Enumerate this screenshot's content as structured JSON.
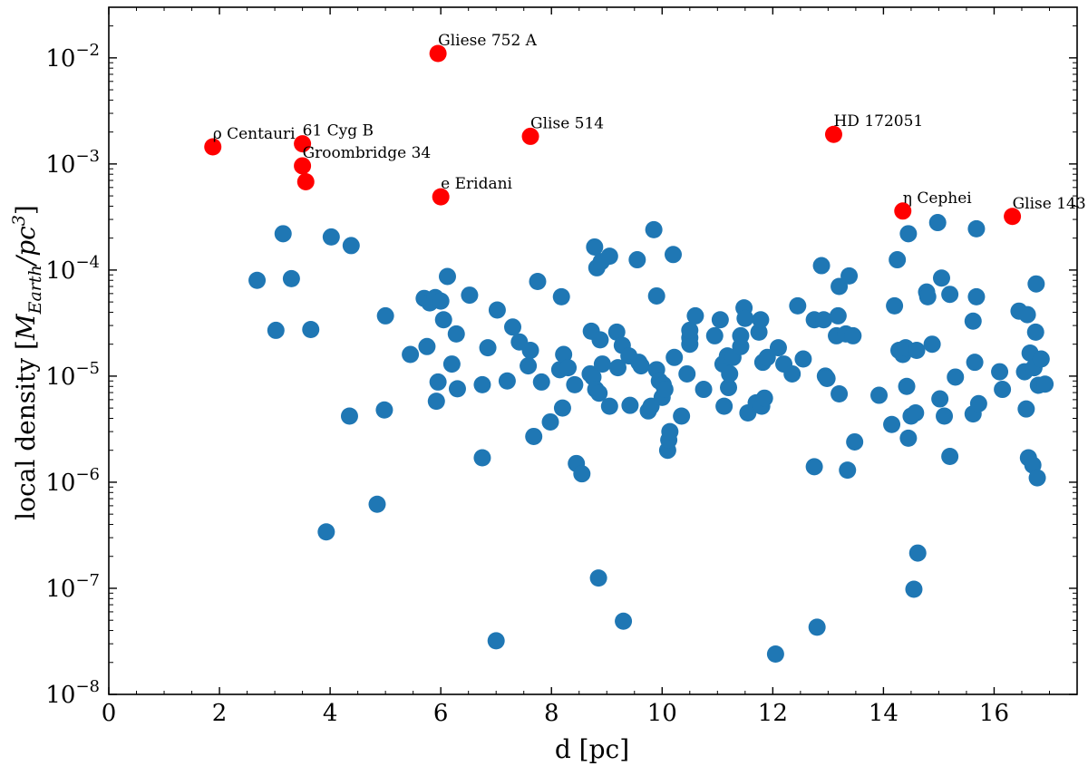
{
  "chart_data": {
    "type": "scatter",
    "title": "",
    "xlabel": "d [pc]",
    "ylabel": "local density [M_Earth/pc^3]",
    "ylabel_parts": {
      "prefix": "local density [",
      "m": "M",
      "sub": "Earth",
      "mid": "/pc",
      "sup": "3",
      "suffix": "]"
    },
    "xlim": [
      0,
      17.5
    ],
    "ylim": [
      1e-08,
      0.03
    ],
    "yscale": "log",
    "xticks": [
      0,
      2,
      4,
      6,
      8,
      10,
      12,
      14,
      16
    ],
    "yticks": [
      {
        "value": 1e-08,
        "base": "10",
        "exp": "−8"
      },
      {
        "value": 1e-07,
        "base": "10",
        "exp": "−7"
      },
      {
        "value": 1e-06,
        "base": "10",
        "exp": "−6"
      },
      {
        "value": 1e-05,
        "base": "10",
        "exp": "−5"
      },
      {
        "value": 0.0001,
        "base": "10",
        "exp": "−4"
      },
      {
        "value": 0.001,
        "base": "10",
        "exp": "−3"
      },
      {
        "value": 0.01,
        "base": "10",
        "exp": "−2"
      }
    ],
    "grid": false,
    "colors": {
      "background_stars": "#1f77b4",
      "highlighted_stars": "#ff0000"
    },
    "series": [
      {
        "points": [
          [
            2.68,
            8e-05
          ],
          [
            3.02,
            2.7e-05
          ],
          [
            3.15,
            0.00022
          ],
          [
            3.3,
            8.3e-05
          ],
          [
            3.65,
            2.75e-05
          ],
          [
            3.93,
            3.4e-07
          ],
          [
            4.02,
            0.000205
          ],
          [
            4.35,
            4.2e-06
          ],
          [
            4.38,
            0.00017
          ],
          [
            4.85,
            6.2e-07
          ],
          [
            4.98,
            4.8e-06
          ],
          [
            5.0,
            3.7e-05
          ],
          [
            5.45,
            1.6e-05
          ],
          [
            5.7,
            5.4e-05
          ],
          [
            5.75,
            1.9e-05
          ],
          [
            5.8,
            4.9e-05
          ],
          [
            5.9,
            5.5e-05
          ],
          [
            5.92,
            5.8e-06
          ],
          [
            5.95,
            8.8e-06
          ],
          [
            6.0,
            5.1e-05
          ],
          [
            6.05,
            3.4e-05
          ],
          [
            6.12,
            8.7e-05
          ],
          [
            6.2,
            1.3e-05
          ],
          [
            6.28,
            2.5e-05
          ],
          [
            6.3,
            7.6e-06
          ],
          [
            6.52,
            5.8e-05
          ],
          [
            6.75,
            1.7e-06
          ],
          [
            6.75,
            8.3e-06
          ],
          [
            6.85,
            1.85e-05
          ],
          [
            7.0,
            3.2e-08
          ],
          [
            7.02,
            4.2e-05
          ],
          [
            7.2,
            9e-06
          ],
          [
            7.3,
            2.9e-05
          ],
          [
            7.42,
            2.1e-05
          ],
          [
            7.58,
            1.25e-05
          ],
          [
            7.62,
            1.75e-05
          ],
          [
            7.68,
            2.7e-06
          ],
          [
            7.75,
            7.8e-05
          ],
          [
            7.82,
            8.8e-06
          ],
          [
            7.98,
            3.7e-06
          ],
          [
            8.15,
            1.15e-05
          ],
          [
            8.18,
            5.6e-05
          ],
          [
            8.2,
            5e-06
          ],
          [
            8.22,
            1.6e-05
          ],
          [
            8.3,
            1.2e-05
          ],
          [
            8.42,
            8.3e-06
          ],
          [
            8.45,
            1.5e-06
          ],
          [
            8.55,
            1.2e-06
          ],
          [
            8.7,
            1.05e-05
          ],
          [
            8.72,
            2.65e-05
          ],
          [
            8.75,
            9.8e-06
          ],
          [
            8.78,
            0.000165
          ],
          [
            8.8,
            7.5e-06
          ],
          [
            8.82,
            0.000105
          ],
          [
            8.85,
            1.25e-07
          ],
          [
            8.86,
            6.9e-06
          ],
          [
            8.88,
            2.2e-05
          ],
          [
            8.9,
            0.00012
          ],
          [
            8.92,
            1.3e-05
          ],
          [
            9.05,
            5.2e-06
          ],
          [
            9.05,
            0.000135
          ],
          [
            9.18,
            2.6e-05
          ],
          [
            9.2,
            1.2e-05
          ],
          [
            9.28,
            1.95e-05
          ],
          [
            9.3,
            4.9e-08
          ],
          [
            9.4,
            1.55e-05
          ],
          [
            9.42,
            5.3e-06
          ],
          [
            9.55,
            0.000125
          ],
          [
            9.58,
            1.35e-05
          ],
          [
            9.62,
            1.25e-05
          ],
          [
            9.75,
            4.7e-06
          ],
          [
            9.8,
            5.2e-06
          ],
          [
            9.85,
            0.00024
          ],
          [
            9.9,
            5.7e-05
          ],
          [
            9.9,
            1.15e-05
          ],
          [
            9.95,
            9e-06
          ],
          [
            10.0,
            6.3e-06
          ],
          [
            10.02,
            8.3e-06
          ],
          [
            10.05,
            7.5e-06
          ],
          [
            10.1,
            2e-06
          ],
          [
            10.12,
            2.5e-06
          ],
          [
            10.14,
            3e-06
          ],
          [
            10.2,
            0.00014
          ],
          [
            10.22,
            1.5e-05
          ],
          [
            10.35,
            4.2e-06
          ],
          [
            10.45,
            1.05e-05
          ],
          [
            10.5,
            2e-05
          ],
          [
            10.5,
            2.3e-05
          ],
          [
            10.5,
            2.7e-05
          ],
          [
            10.6,
            3.7e-05
          ],
          [
            10.75,
            7.5e-06
          ],
          [
            10.95,
            2.4e-05
          ],
          [
            11.05,
            3.4e-05
          ],
          [
            11.1,
            1.3e-05
          ],
          [
            11.12,
            5.2e-06
          ],
          [
            11.18,
            1.55e-05
          ],
          [
            11.2,
            7.8e-06
          ],
          [
            11.22,
            1.05e-05
          ],
          [
            11.28,
            1.5e-05
          ],
          [
            11.42,
            1.9e-05
          ],
          [
            11.42,
            2.4e-05
          ],
          [
            11.48,
            4.4e-05
          ],
          [
            11.5,
            3.5e-05
          ],
          [
            11.55,
            4.5e-06
          ],
          [
            11.7,
            5.6e-06
          ],
          [
            11.75,
            2.6e-05
          ],
          [
            11.78,
            3.4e-05
          ],
          [
            11.8,
            5.2e-06
          ],
          [
            11.82,
            1.35e-05
          ],
          [
            11.85,
            6.2e-06
          ],
          [
            11.9,
            1.5e-05
          ],
          [
            12.05,
            2.4e-08
          ],
          [
            12.1,
            1.85e-05
          ],
          [
            12.2,
            1.3e-05
          ],
          [
            12.35,
            1.05e-05
          ],
          [
            12.45,
            4.6e-05
          ],
          [
            12.55,
            1.45e-05
          ],
          [
            12.75,
            3.4e-05
          ],
          [
            12.75,
            1.4e-06
          ],
          [
            12.8,
            4.3e-08
          ],
          [
            12.88,
            0.00011
          ],
          [
            12.92,
            3.4e-05
          ],
          [
            12.95,
            1e-05
          ],
          [
            12.98,
            9.5e-06
          ],
          [
            13.15,
            2.4e-05
          ],
          [
            13.18,
            3.7e-05
          ],
          [
            13.2,
            7e-05
          ],
          [
            13.2,
            6.8e-06
          ],
          [
            13.32,
            2.5e-05
          ],
          [
            13.35,
            1.3e-06
          ],
          [
            13.38,
            8.8e-05
          ],
          [
            13.45,
            2.4e-05
          ],
          [
            13.48,
            2.4e-06
          ],
          [
            13.92,
            6.6e-06
          ],
          [
            14.15,
            3.5e-06
          ],
          [
            14.2,
            4.6e-05
          ],
          [
            14.25,
            0.000125
          ],
          [
            14.28,
            1.75e-05
          ],
          [
            14.35,
            1.6e-05
          ],
          [
            14.4,
            1.85e-05
          ],
          [
            14.42,
            8e-06
          ],
          [
            14.45,
            2.6e-06
          ],
          [
            14.45,
            0.00022
          ],
          [
            14.5,
            4.2e-06
          ],
          [
            14.55,
            9.8e-08
          ],
          [
            14.58,
            4.5e-06
          ],
          [
            14.6,
            1.75e-05
          ],
          [
            14.62,
            2.15e-07
          ],
          [
            14.78,
            6.2e-05
          ],
          [
            14.8,
            5.6e-05
          ],
          [
            14.88,
            2e-05
          ],
          [
            14.98,
            0.00028
          ],
          [
            15.02,
            6.1e-06
          ],
          [
            15.05,
            8.4e-05
          ],
          [
            15.1,
            4.2e-06
          ],
          [
            15.2,
            5.9e-05
          ],
          [
            15.2,
            1.75e-06
          ],
          [
            15.3,
            9.8e-06
          ],
          [
            15.62,
            3.3e-05
          ],
          [
            15.62,
            4.4e-06
          ],
          [
            15.65,
            1.35e-05
          ],
          [
            15.68,
            0.000245
          ],
          [
            15.68,
            5.6e-05
          ],
          [
            15.72,
            5.5e-06
          ],
          [
            16.1,
            1.1e-05
          ],
          [
            16.15,
            7.5e-06
          ],
          [
            16.45,
            4.1e-05
          ],
          [
            16.55,
            1.1e-05
          ],
          [
            16.58,
            4.9e-06
          ],
          [
            16.6,
            3.8e-05
          ],
          [
            16.62,
            1.7e-06
          ],
          [
            16.65,
            1.65e-05
          ],
          [
            16.7,
            1.45e-06
          ],
          [
            16.72,
            1.2e-05
          ],
          [
            16.75,
            2.6e-05
          ],
          [
            16.76,
            7.4e-05
          ],
          [
            16.78,
            1.1e-06
          ],
          [
            16.8,
            8.2e-06
          ],
          [
            16.85,
            1.45e-05
          ],
          [
            16.92,
            8.4e-06
          ]
        ]
      },
      {
        "points": [
          {
            "x": 1.88,
            "y": 0.00145,
            "label": "ρ Centauri"
          },
          {
            "x": 3.5,
            "y": 0.00155,
            "label": "61 Cyg B"
          },
          {
            "x": 3.5,
            "y": 0.00096,
            "label": "Groombridge 34"
          },
          {
            "x": 3.56,
            "y": 0.00068,
            "label": ""
          },
          {
            "x": 5.95,
            "y": 0.011,
            "label": "Gliese 752 A"
          },
          {
            "x": 6.0,
            "y": 0.00049,
            "label": "e Eridani"
          },
          {
            "x": 7.62,
            "y": 0.00182,
            "label": "Glise 514"
          },
          {
            "x": 13.1,
            "y": 0.0019,
            "label": "HD 172051"
          },
          {
            "x": 14.35,
            "y": 0.00036,
            "label": "η Cephei"
          },
          {
            "x": 16.33,
            "y": 0.00032,
            "label": "Glise 143"
          }
        ]
      }
    ]
  }
}
